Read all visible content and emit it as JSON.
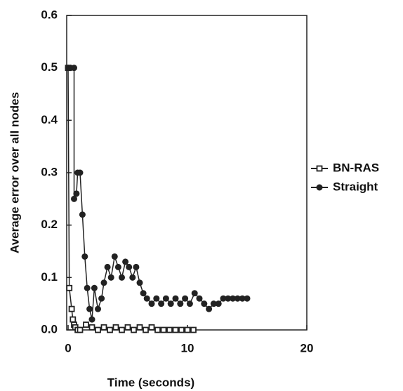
{
  "chart_data": {
    "type": "line",
    "xlabel": "Time (seconds)",
    "ylabel": "Average error over all nodes",
    "xlim": [
      0,
      20
    ],
    "xticks": [
      0,
      10,
      20
    ],
    "ylim": [
      0,
      0.6
    ],
    "yticks": [
      {
        "value": 0,
        "label": "0.0"
      },
      0.1,
      0.2,
      0.3,
      0.4,
      0.5,
      0.6
    ],
    "legend": "right",
    "series": [
      {
        "name": "BN-RAS",
        "color": "#222222",
        "marker": "square-open",
        "x": [
          0,
          0.1,
          0.3,
          0.4,
          0.5,
          0.6,
          0.8,
          1.0,
          1.5,
          2,
          2.5,
          3,
          3.5,
          4,
          4.5,
          5,
          5.5,
          6,
          6.5,
          7,
          7.5,
          8,
          8.5,
          9,
          9.5,
          10,
          10.5
        ],
        "values": [
          0.5,
          0.08,
          0.04,
          0.02,
          0.01,
          0.005,
          0,
          0,
          0.01,
          0.005,
          0,
          0.005,
          0,
          0.005,
          0,
          0.005,
          0,
          0.005,
          0,
          0.005,
          0,
          0,
          0,
          0,
          0,
          0,
          0
        ]
      },
      {
        "name": "Straight",
        "color": "#222222",
        "marker": "diamond-filled",
        "x": [
          0,
          0.2,
          0.5,
          0.5,
          0.7,
          0.8,
          1.0,
          1.2,
          1.4,
          1.6,
          1.8,
          2.0,
          2.2,
          2.5,
          2.8,
          3.0,
          3.3,
          3.6,
          3.9,
          4.2,
          4.5,
          4.8,
          5.1,
          5.4,
          5.7,
          6.0,
          6.3,
          6.6,
          7.0,
          7.4,
          7.8,
          8.2,
          8.6,
          9.0,
          9.4,
          9.8,
          10.2,
          10.6,
          11.0,
          11.4,
          11.8,
          12.2,
          12.6,
          13.0,
          13.4,
          13.8,
          14.2,
          14.6,
          15.0
        ],
        "values": [
          0.5,
          0.5,
          0.5,
          0.25,
          0.26,
          0.3,
          0.3,
          0.22,
          0.14,
          0.08,
          0.04,
          0.02,
          0.08,
          0.04,
          0.06,
          0.09,
          0.12,
          0.1,
          0.14,
          0.12,
          0.1,
          0.13,
          0.12,
          0.1,
          0.12,
          0.09,
          0.07,
          0.06,
          0.05,
          0.06,
          0.05,
          0.06,
          0.05,
          0.06,
          0.05,
          0.06,
          0.05,
          0.07,
          0.06,
          0.05,
          0.04,
          0.05,
          0.05,
          0.06,
          0.06,
          0.06,
          0.06,
          0.06,
          0.06
        ]
      }
    ]
  }
}
